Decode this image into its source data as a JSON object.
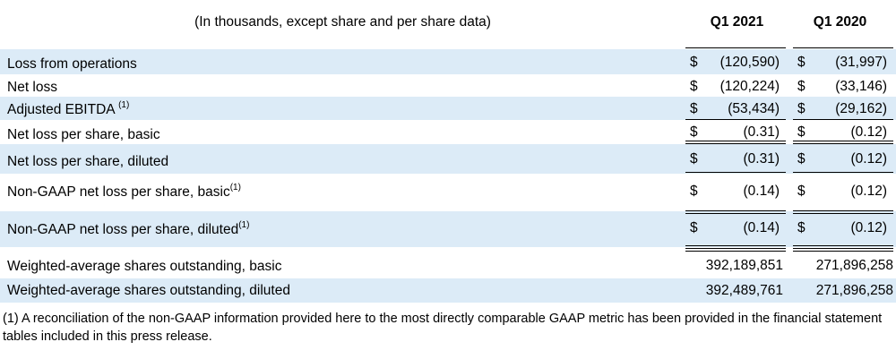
{
  "header": {
    "note": "(In thousands, except share and per share data)",
    "col1": "Q1 2021",
    "col2": "Q1 2020"
  },
  "rows": [
    {
      "label": "Loss from operations",
      "sup": "",
      "c1_dollar": "$",
      "c1": "(120,590)",
      "c2_dollar": "$",
      "c2": "(31,997)"
    },
    {
      "label": "Net loss",
      "sup": "",
      "c1_dollar": "$",
      "c1": "(120,224)",
      "c2_dollar": "$",
      "c2": "(33,146)"
    },
    {
      "label": "Adjusted EBITDA ",
      "sup": "(1)",
      "c1_dollar": "$",
      "c1": "(53,434)",
      "c2_dollar": "$",
      "c2": "(29,162)"
    },
    {
      "label": "Net loss per share, basic",
      "sup": "",
      "c1_dollar": "$",
      "c1": "(0.31)",
      "c2_dollar": "$",
      "c2": "(0.12)"
    },
    {
      "label": "Net loss per share, diluted",
      "sup": "",
      "c1_dollar": "$",
      "c1": "(0.31)",
      "c2_dollar": "$",
      "c2": "(0.12)"
    },
    {
      "label": "Non-GAAP net loss per share, basic",
      "sup": "(1)",
      "c1_dollar": "$",
      "c1": "(0.14)",
      "c2_dollar": "$",
      "c2": "(0.12)"
    },
    {
      "label": "Non-GAAP net loss per share, diluted",
      "sup": "(1)",
      "c1_dollar": "$",
      "c1": "(0.14)",
      "c2_dollar": "$",
      "c2": "(0.12)"
    },
    {
      "label": "Weighted-average shares outstanding, basic",
      "sup": "",
      "c1": "392,189,851",
      "c2": "271,896,258"
    },
    {
      "label": "Weighted-average shares outstanding, diluted",
      "sup": "",
      "c1": "392,489,761",
      "c2": "271,896,258"
    }
  ],
  "footnote": "(1) A reconciliation of the non-GAAP information provided here to the most directly comparable GAAP metric has been provided in the financial statement tables included in this press release."
}
